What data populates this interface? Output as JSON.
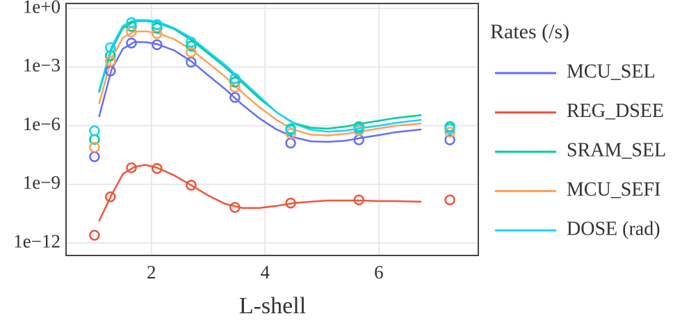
{
  "chart_data": {
    "type": "scatter",
    "x_label": "L-shell",
    "legend_title": "Rates (/s)",
    "y_scale": "log",
    "grid": true,
    "xlim": [
      0.5,
      7.75
    ],
    "xticks": [
      2,
      4,
      6
    ],
    "ylim": [
      2.3e-13,
      1.8
    ],
    "yticks": [
      {
        "value": 1,
        "label": "1e+0"
      },
      {
        "value": 0.001,
        "label": "1e−3"
      },
      {
        "value": 1e-06,
        "label": "1e−6"
      },
      {
        "value": 1e-09,
        "label": "1e−9"
      },
      {
        "value": 1e-12,
        "label": "1e−12"
      }
    ],
    "x": [
      1.0,
      1.28,
      1.65,
      2.1,
      2.7,
      3.47,
      4.45,
      5.65,
      7.25
    ],
    "fit_x": [
      1.08,
      1.3,
      1.5,
      1.7,
      1.9,
      2.1,
      2.4,
      2.7,
      3.0,
      3.3,
      3.6,
      3.9,
      4.2,
      4.5,
      4.8,
      5.1,
      5.4,
      5.7,
      6.0,
      6.3,
      6.75
    ],
    "series": [
      {
        "name": "MCU_SEL",
        "color": "#636efa",
        "values": [
          2.6e-08,
          0.00063,
          0.017,
          0.014,
          0.0018,
          2.8e-05,
          1.3e-07,
          1.9e-07,
          1.9e-07
        ],
        "fit_values": [
          2.8e-06,
          0.00074,
          0.0087,
          0.019,
          0.019,
          0.015,
          0.0072,
          0.002,
          0.00038,
          7.4e-05,
          1.2e-05,
          2.4e-06,
          6.5e-07,
          2.6e-07,
          1.6e-07,
          1.5e-07,
          1.7e-07,
          2.4e-07,
          3.3e-07,
          4.7e-07,
          6.5e-07
        ]
      },
      {
        "name": "REG_DSEE",
        "color": "#ef553b",
        "values": [
          2.5e-12,
          2.3e-10,
          7.1e-09,
          6.5e-09,
          9.1e-10,
          6.6e-11,
          1.1e-10,
          1.6e-10,
          1.6e-10
        ],
        "fit_values": [
          1.3e-11,
          2.9e-10,
          3.4e-09,
          7.8e-09,
          1e-08,
          7.1e-09,
          2.9e-09,
          9.1e-10,
          2.7e-10,
          1e-10,
          6.2e-11,
          6.2e-11,
          7.9e-11,
          1.1e-10,
          1.3e-10,
          1.5e-10,
          1.5e-10,
          1.5e-10,
          1.4e-10,
          1.4e-10,
          1.3e-10
        ]
      },
      {
        "name": "SRAM_SEL",
        "color": "#00cc96",
        "values": [
          2e-07,
          0.0038,
          0.12,
          0.1,
          0.012,
          0.00017,
          6.9e-07,
          8.9e-07,
          8.9e-07
        ],
        "fit_values": [
          5e-05,
          0.0079,
          0.1,
          0.22,
          0.23,
          0.19,
          0.089,
          0.025,
          0.005,
          0.001,
          0.00016,
          2.5e-05,
          5e-06,
          1.4e-06,
          7.9e-07,
          7.1e-07,
          8.9e-07,
          1.3e-06,
          1.8e-06,
          2.5e-06,
          3.5e-06
        ]
      },
      {
        "name": "MCU_SEFI",
        "color": "#ffa15a",
        "values": [
          7.9e-08,
          0.002,
          0.063,
          0.052,
          0.0058,
          9.5e-05,
          4e-07,
          5.5e-07,
          4.7e-07
        ],
        "fit_values": [
          1.3e-05,
          0.0028,
          0.032,
          0.066,
          0.068,
          0.056,
          0.027,
          0.0079,
          0.0016,
          0.00032,
          5e-05,
          8.9e-06,
          2e-06,
          6.3e-07,
          3.5e-07,
          3.2e-07,
          3.8e-07,
          5.2e-07,
          7.2e-07,
          1e-06,
          1.3e-06
        ]
      },
      {
        "name": "DOSE (rad)",
        "color": "#19d3f3",
        "values": [
          5.5e-07,
          0.01,
          0.19,
          0.15,
          0.019,
          0.00026,
          5.9e-07,
          6.9e-07,
          6.9e-07
        ],
        "fit_values": [
          6.3e-05,
          0.011,
          0.13,
          0.25,
          0.26,
          0.22,
          0.1,
          0.032,
          0.0063,
          0.0013,
          0.0002,
          3.2e-05,
          5e-06,
          1.3e-06,
          6.3e-07,
          5e-07,
          5.6e-07,
          7.6e-07,
          1e-06,
          1.4e-06,
          2e-06
        ]
      }
    ]
  }
}
